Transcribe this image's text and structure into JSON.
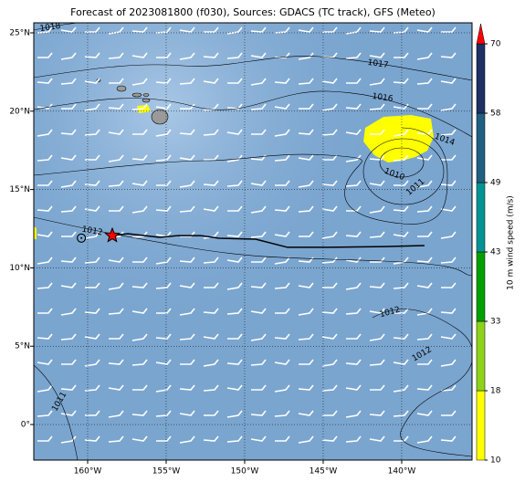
{
  "chart_data": {
    "type": "map",
    "title": "Forecast of 2023081800 (f030), Sources: GDACS (TC track), GFS (Meteo)",
    "xlim": [
      -163.43,
      -135.52
    ],
    "ylim": [
      -2.27,
      25.64
    ],
    "xticks": [
      {
        "value": -160,
        "label": "160°W"
      },
      {
        "value": -155,
        "label": "155°W"
      },
      {
        "value": -150,
        "label": "150°W"
      },
      {
        "value": -145,
        "label": "145°W"
      },
      {
        "value": -140,
        "label": "140°W"
      }
    ],
    "yticks": [
      {
        "value": 0,
        "label": "0°"
      },
      {
        "value": 5,
        "label": "5°N"
      },
      {
        "value": 10,
        "label": "10°N"
      },
      {
        "value": 15,
        "label": "15°N"
      },
      {
        "value": 20,
        "label": "20°N"
      },
      {
        "value": 25,
        "label": "25°N"
      }
    ],
    "grid": true,
    "ocean_color": "#7aa5cf",
    "track": {
      "color": "#000000",
      "lon": [
        -158.43,
        -157.44,
        -155.41,
        -154.24,
        -152.79,
        -151.63,
        -149.3,
        -147.27,
        -144.65,
        -141.16,
        -138.55
      ],
      "lat": [
        12.06,
        12.18,
        11.95,
        12.06,
        12.06,
        11.89,
        11.83,
        11.31,
        11.31,
        11.36,
        11.42
      ]
    },
    "markers": [
      {
        "symbol": "star",
        "color": "#ff0000",
        "lon": -158.43,
        "lat": 12.06
      },
      {
        "symbol": "circle",
        "color": "#000000",
        "lon": -160.4,
        "lat": 11.9
      }
    ],
    "contour_labels": [
      "1018",
      "1017",
      "1016",
      "1014",
      "1010",
      "1011",
      "1012",
      "1012",
      "1012",
      "1011"
    ],
    "colorbar": {
      "label": "10 m wind speed (m/s)",
      "ticks": [
        10,
        18,
        33,
        43,
        49,
        58,
        70
      ],
      "colors": [
        "#ffff00",
        "#8dd317",
        "#00a000",
        "#009494",
        "#1f5f82",
        "#1e3064"
      ],
      "extend_color": "#ff0000"
    }
  }
}
